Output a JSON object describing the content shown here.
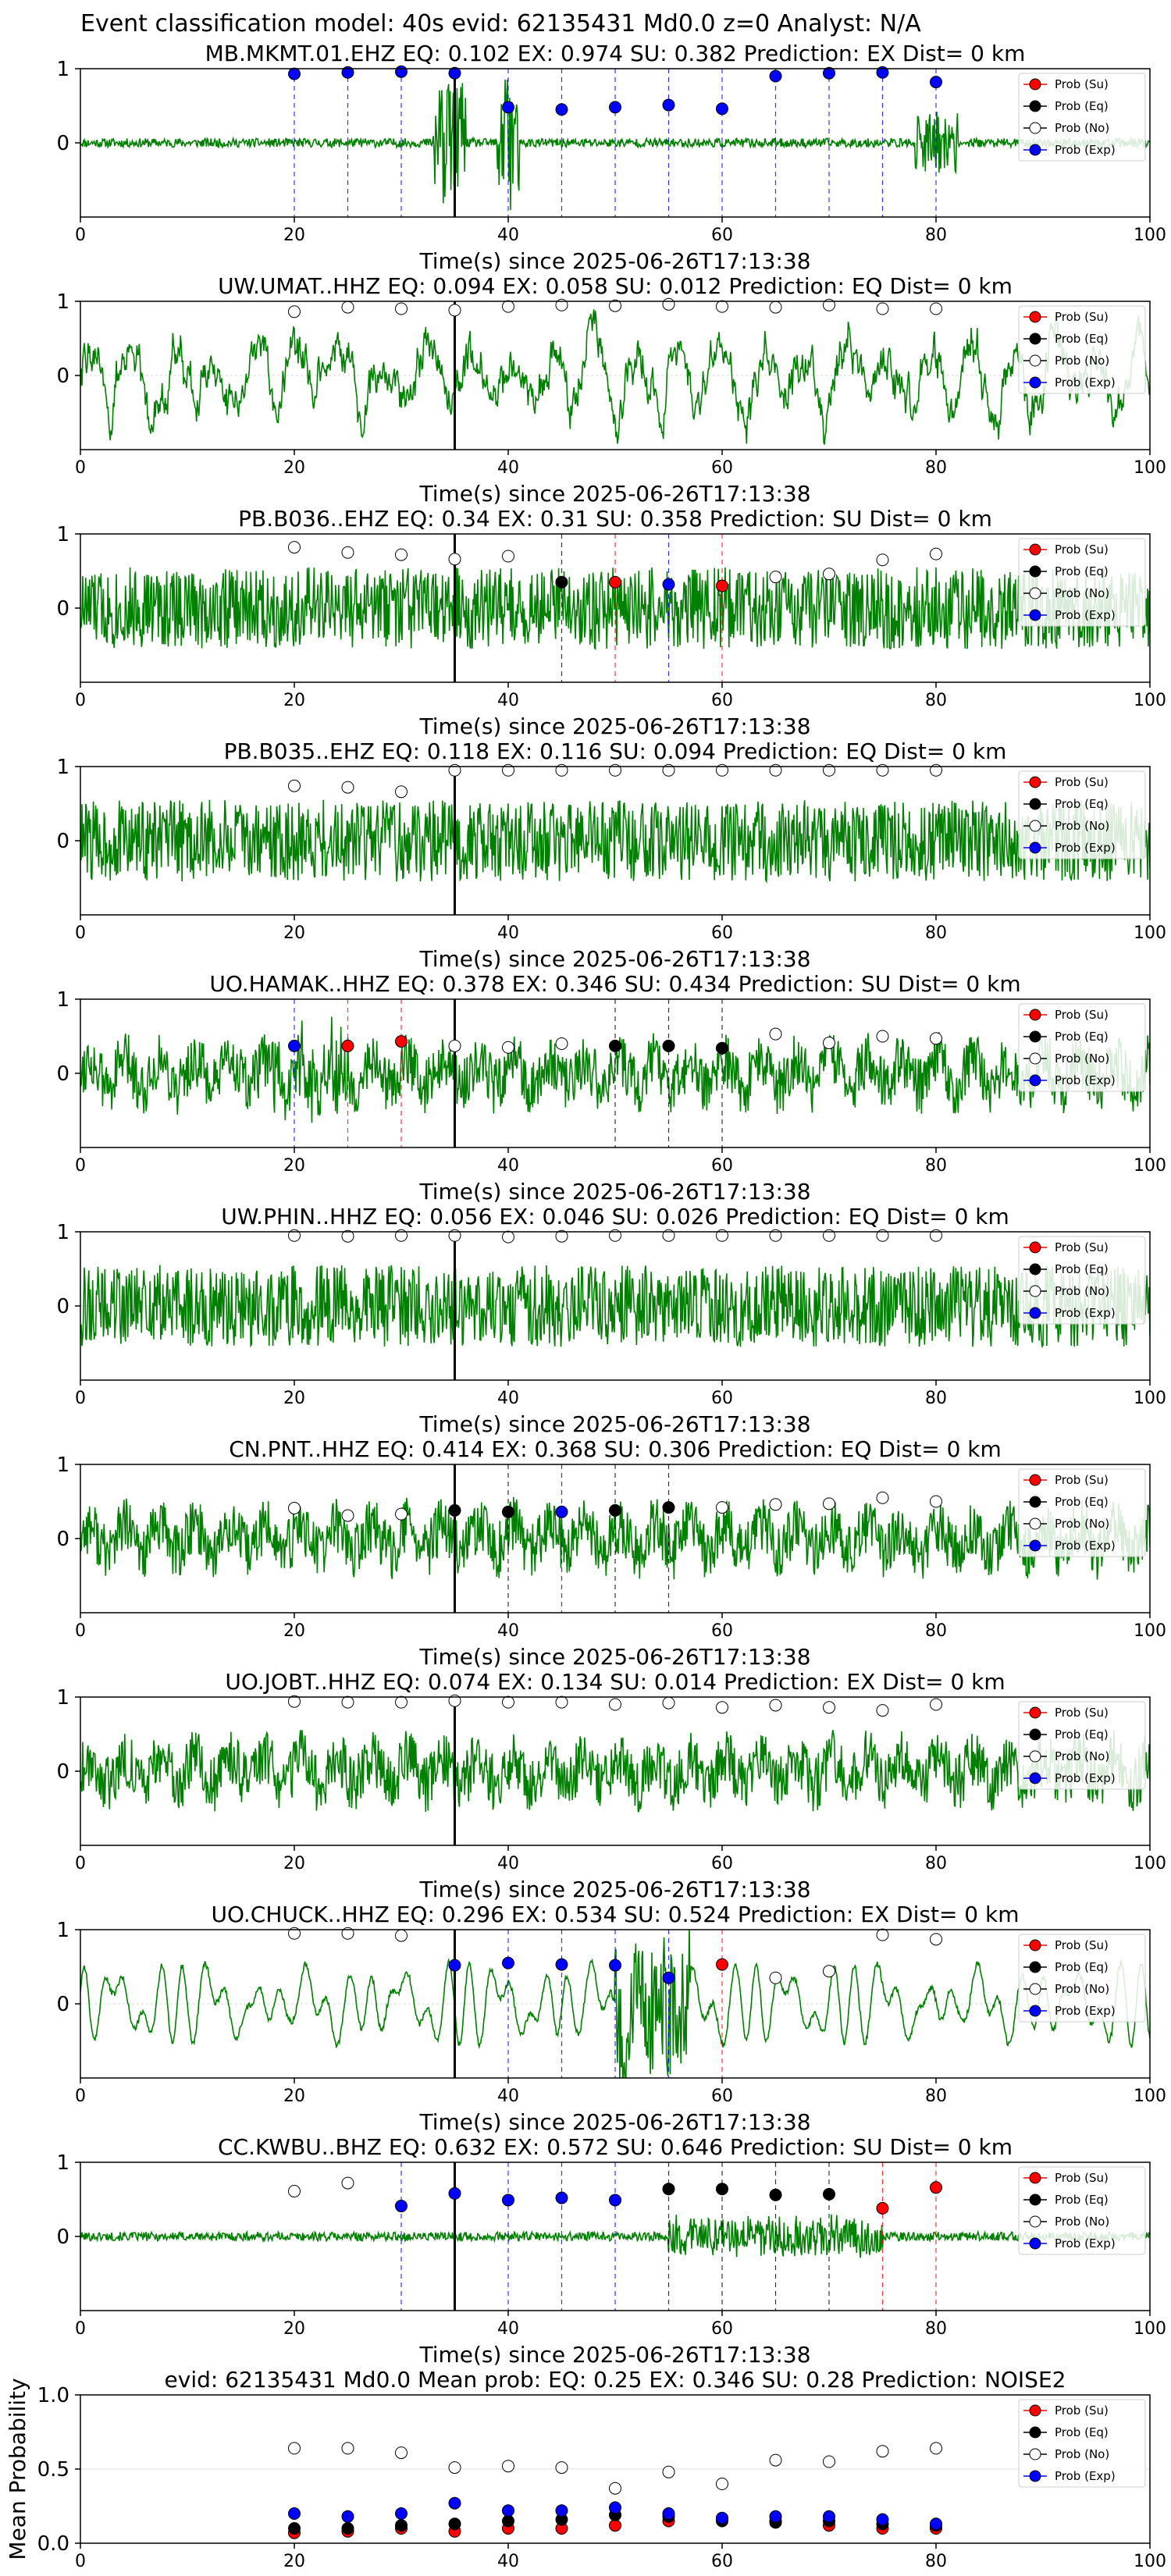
{
  "figure": {
    "suptitle": "Event classification model: 40s evid: 62135431 Md0.0 z=0 Analyst: N/A"
  },
  "legend_labels": [
    "Prob (Su)",
    "Prob (Eq)",
    "Prob (No)",
    "Prob (Exp)"
  ],
  "colors": {
    "su": "#ff0000",
    "eq": "#000000",
    "no": "#ffffff",
    "exp": "#0000ff",
    "trace": "#008000"
  },
  "chart_data": [
    {
      "type": "line",
      "title": "MB.MKMT.01.EHZ    EQ: 0.102   EX: 0.974   SU: 0.382    Prediction: EX     Dist= 0 km",
      "xlabel": "Time(s) since 2025-06-26T17:13:38",
      "ylabel": "",
      "xlim": [
        0,
        100
      ],
      "ylim": [
        -1,
        1
      ],
      "xticks": [
        0,
        20,
        40,
        60,
        80,
        100
      ],
      "yticks": [
        0,
        1
      ],
      "pick_time": 35,
      "trace": {
        "seed": 11,
        "style": "quiet",
        "bursts": [
          [
            33,
            36,
            0.8
          ],
          [
            39,
            41,
            0.9
          ],
          [
            78,
            82,
            0.4
          ]
        ]
      },
      "windows": [
        20,
        25,
        30,
        35,
        40,
        45,
        50,
        55,
        60,
        65,
        70,
        75,
        80
      ],
      "points": [
        [
          "exp",
          0.93
        ],
        [
          "exp",
          0.95
        ],
        [
          "exp",
          0.96
        ],
        [
          "exp",
          0.94
        ],
        [
          "exp",
          0.48
        ],
        [
          "exp",
          0.45
        ],
        [
          "exp",
          0.48
        ],
        [
          "exp",
          0.51
        ],
        [
          "exp",
          0.46
        ],
        [
          "exp",
          0.9
        ],
        [
          "exp",
          0.94
        ],
        [
          "exp",
          0.95
        ],
        [
          "exp",
          0.82
        ]
      ]
    },
    {
      "type": "line",
      "title": "UW.UMAT..HHZ   EQ: 0.094   EX: 0.058   SU: 0.012    Prediction: EQ     Dist= 0 km",
      "xlabel": "Time(s) since 2025-06-26T17:13:38",
      "ylabel": "",
      "xlim": [
        0,
        100
      ],
      "ylim": [
        -1,
        1
      ],
      "xticks": [
        0,
        20,
        40,
        60,
        80,
        100
      ],
      "yticks": [
        0,
        1
      ],
      "pick_time": 35,
      "trace": {
        "seed": 22,
        "style": "wavy",
        "bursts": []
      },
      "windows": [
        20,
        25,
        30,
        35,
        40,
        45,
        50,
        55,
        60,
        65,
        70,
        75,
        80
      ],
      "points": [
        [
          "no",
          0.86
        ],
        [
          "no",
          0.92
        ],
        [
          "no",
          0.9
        ],
        [
          "no",
          0.88
        ],
        [
          "no",
          0.93
        ],
        [
          "no",
          0.95
        ],
        [
          "no",
          0.94
        ],
        [
          "no",
          0.96
        ],
        [
          "no",
          0.93
        ],
        [
          "no",
          0.92
        ],
        [
          "no",
          0.95
        ],
        [
          "no",
          0.9
        ],
        [
          "no",
          0.9
        ]
      ]
    },
    {
      "type": "line",
      "title": "PB.B036..EHZ   EQ: 0.34   EX: 0.31   SU: 0.358    Prediction: SU     Dist= 0 km",
      "xlabel": "Time(s) since 2025-06-26T17:13:38",
      "ylabel": "",
      "xlim": [
        0,
        100
      ],
      "ylim": [
        -1,
        1
      ],
      "xticks": [
        0,
        20,
        40,
        60,
        80,
        100
      ],
      "yticks": [
        0,
        1
      ],
      "pick_time": 35,
      "trace": {
        "seed": 33,
        "style": "dense",
        "bursts": []
      },
      "windows": [
        20,
        25,
        30,
        35,
        40,
        45,
        50,
        55,
        60,
        65,
        70,
        75,
        80
      ],
      "points": [
        [
          "no",
          0.82
        ],
        [
          "no",
          0.75
        ],
        [
          "no",
          0.72
        ],
        [
          "no",
          0.66
        ],
        [
          "no",
          0.7
        ],
        [
          "eq",
          0.35
        ],
        [
          "su",
          0.35
        ],
        [
          "exp",
          0.32
        ],
        [
          "su",
          0.3
        ],
        [
          "no",
          0.42
        ],
        [
          "no",
          0.46
        ],
        [
          "no",
          0.65
        ],
        [
          "no",
          0.73
        ]
      ]
    },
    {
      "type": "line",
      "title": "PB.B035..EHZ   EQ: 0.118   EX: 0.116   SU: 0.094    Prediction: EQ     Dist= 0 km",
      "xlabel": "Time(s) since 2025-06-26T17:13:38",
      "ylabel": "",
      "xlim": [
        0,
        100
      ],
      "ylim": [
        -1,
        1
      ],
      "xticks": [
        0,
        20,
        40,
        60,
        80,
        100
      ],
      "yticks": [
        0,
        1
      ],
      "pick_time": 35,
      "trace": {
        "seed": 44,
        "style": "dense",
        "bursts": []
      },
      "windows": [
        20,
        25,
        30,
        35,
        40,
        45,
        50,
        55,
        60,
        65,
        70,
        75,
        80
      ],
      "points": [
        [
          "no",
          0.74
        ],
        [
          "no",
          0.72
        ],
        [
          "no",
          0.66
        ],
        [
          "no",
          0.95
        ],
        [
          "no",
          0.95
        ],
        [
          "no",
          0.95
        ],
        [
          "no",
          0.95
        ],
        [
          "no",
          0.95
        ],
        [
          "no",
          0.95
        ],
        [
          "no",
          0.95
        ],
        [
          "no",
          0.95
        ],
        [
          "no",
          0.95
        ],
        [
          "no",
          0.95
        ]
      ]
    },
    {
      "type": "line",
      "title": "UO.HAMAK..HHZ   EQ: 0.378   EX: 0.346   SU: 0.434    Prediction: SU     Dist= 0 km",
      "xlabel": "Time(s) since 2025-06-26T17:13:38",
      "ylabel": "",
      "xlim": [
        0,
        100
      ],
      "ylim": [
        -1,
        1
      ],
      "xticks": [
        0,
        20,
        40,
        60,
        80,
        100
      ],
      "yticks": [
        0,
        1
      ],
      "pick_time": 35,
      "trace": {
        "seed": 55,
        "style": "medium",
        "bursts": [
          [
            18,
            25,
            0.4
          ]
        ]
      },
      "windows": [
        20,
        25,
        30,
        35,
        40,
        45,
        50,
        55,
        60,
        65,
        70,
        75,
        80
      ],
      "points": [
        [
          "exp",
          0.37
        ],
        [
          "su",
          0.37
        ],
        [
          "su",
          0.43
        ],
        [
          "no",
          0.37
        ],
        [
          "no",
          0.35
        ],
        [
          "no",
          0.4
        ],
        [
          "eq",
          0.37
        ],
        [
          "eq",
          0.37
        ],
        [
          "eq",
          0.34
        ],
        [
          "no",
          0.53
        ],
        [
          "no",
          0.41
        ],
        [
          "no",
          0.5
        ],
        [
          "no",
          0.47
        ]
      ]
    },
    {
      "type": "line",
      "title": "UW.PHIN..HHZ   EQ: 0.056   EX: 0.046   SU: 0.026    Prediction: EQ     Dist= 0 km",
      "xlabel": "Time(s) since 2025-06-26T17:13:38",
      "ylabel": "",
      "xlim": [
        0,
        100
      ],
      "ylim": [
        -1,
        1
      ],
      "xticks": [
        0,
        20,
        40,
        60,
        80,
        100
      ],
      "yticks": [
        0,
        1
      ],
      "pick_time": 35,
      "trace": {
        "seed": 66,
        "style": "dense",
        "bursts": []
      },
      "windows": [
        20,
        25,
        30,
        35,
        40,
        45,
        50,
        55,
        60,
        65,
        70,
        75,
        80
      ],
      "points": [
        [
          "no",
          0.95
        ],
        [
          "no",
          0.94
        ],
        [
          "no",
          0.95
        ],
        [
          "no",
          0.95
        ],
        [
          "no",
          0.93
        ],
        [
          "no",
          0.94
        ],
        [
          "no",
          0.95
        ],
        [
          "no",
          0.95
        ],
        [
          "no",
          0.95
        ],
        [
          "no",
          0.95
        ],
        [
          "no",
          0.95
        ],
        [
          "no",
          0.95
        ],
        [
          "no",
          0.95
        ]
      ]
    },
    {
      "type": "line",
      "title": "CN.PNT..HHZ   EQ: 0.414   EX: 0.368   SU: 0.306    Prediction: EQ     Dist= 0 km",
      "xlabel": "Time(s) since 2025-06-26T17:13:38",
      "ylabel": "",
      "xlim": [
        0,
        100
      ],
      "ylim": [
        -1,
        1
      ],
      "xticks": [
        0,
        20,
        40,
        60,
        80,
        100
      ],
      "yticks": [
        0,
        1
      ],
      "pick_time": 35,
      "trace": {
        "seed": 77,
        "style": "medium",
        "bursts": []
      },
      "windows": [
        20,
        25,
        30,
        35,
        40,
        45,
        50,
        55,
        60,
        65,
        70,
        75,
        80
      ],
      "points": [
        [
          "no",
          0.41
        ],
        [
          "no",
          0.31
        ],
        [
          "no",
          0.33
        ],
        [
          "eq",
          0.38
        ],
        [
          "eq",
          0.36
        ],
        [
          "exp",
          0.36
        ],
        [
          "eq",
          0.38
        ],
        [
          "eq",
          0.42
        ],
        [
          "no",
          0.42
        ],
        [
          "no",
          0.46
        ],
        [
          "no",
          0.47
        ],
        [
          "no",
          0.55
        ],
        [
          "no",
          0.5
        ]
      ]
    },
    {
      "type": "line",
      "title": "UO.JOBT..HHZ   EQ: 0.074   EX: 0.134   SU: 0.014    Prediction: EX     Dist= 0 km",
      "xlabel": "Time(s) since 2025-06-26T17:13:38",
      "ylabel": "",
      "xlim": [
        0,
        100
      ],
      "ylim": [
        -1,
        1
      ],
      "xticks": [
        0,
        20,
        40,
        60,
        80,
        100
      ],
      "yticks": [
        0,
        1
      ],
      "pick_time": 35,
      "trace": {
        "seed": 88,
        "style": "medium",
        "bursts": []
      },
      "windows": [
        20,
        25,
        30,
        35,
        40,
        45,
        50,
        55,
        60,
        65,
        70,
        75,
        80
      ],
      "points": [
        [
          "no",
          0.94
        ],
        [
          "no",
          0.93
        ],
        [
          "no",
          0.93
        ],
        [
          "no",
          0.95
        ],
        [
          "no",
          0.93
        ],
        [
          "no",
          0.93
        ],
        [
          "no",
          0.9
        ],
        [
          "no",
          0.92
        ],
        [
          "no",
          0.86
        ],
        [
          "no",
          0.89
        ],
        [
          "no",
          0.86
        ],
        [
          "no",
          0.82
        ],
        [
          "no",
          0.9
        ]
      ]
    },
    {
      "type": "line",
      "title": "UO.CHUCK..HHZ   EQ: 0.296   EX: 0.534   SU: 0.524    Prediction: EX     Dist= 0 km",
      "xlabel": "Time(s) since 2025-06-26T17:13:38",
      "ylabel": "",
      "xlim": [
        0,
        100
      ],
      "ylim": [
        -1,
        1
      ],
      "xticks": [
        0,
        20,
        40,
        60,
        80,
        100
      ],
      "yticks": [
        0,
        1
      ],
      "pick_time": 35,
      "trace": {
        "seed": 99,
        "style": "smooth",
        "bursts": [
          [
            50,
            57,
            0.9
          ]
        ]
      },
      "windows": [
        20,
        25,
        30,
        35,
        40,
        45,
        50,
        55,
        60,
        65,
        70,
        75,
        80
      ],
      "points": [
        [
          "no",
          0.95
        ],
        [
          "no",
          0.95
        ],
        [
          "no",
          0.92
        ],
        [
          "exp",
          0.52
        ],
        [
          "exp",
          0.55
        ],
        [
          "exp",
          0.53
        ],
        [
          "exp",
          0.52
        ],
        [
          "exp",
          0.35
        ],
        [
          "su",
          0.53
        ],
        [
          "no",
          0.35
        ],
        [
          "no",
          0.44
        ],
        [
          "no",
          0.93
        ],
        [
          "no",
          0.87
        ]
      ]
    },
    {
      "type": "line",
      "title": "CC.KWBU..BHZ   EQ: 0.632   EX: 0.572   SU: 0.646    Prediction: SU     Dist= 0 km",
      "xlabel": "Time(s) since 2025-06-26T17:13:38",
      "ylabel": "",
      "xlim": [
        0,
        100
      ],
      "ylim": [
        -1,
        1
      ],
      "xticks": [
        0,
        20,
        40,
        60,
        80,
        100
      ],
      "yticks": [
        0,
        1
      ],
      "pick_time": 35,
      "trace": {
        "seed": 101,
        "style": "quiet",
        "bursts": [
          [
            55,
            75,
            0.25
          ]
        ]
      },
      "windows": [
        20,
        25,
        30,
        35,
        40,
        45,
        50,
        55,
        60,
        65,
        70,
        75,
        80
      ],
      "points": [
        [
          "no",
          0.61
        ],
        [
          "no",
          0.72
        ],
        [
          "exp",
          0.41
        ],
        [
          "exp",
          0.58
        ],
        [
          "exp",
          0.49
        ],
        [
          "exp",
          0.52
        ],
        [
          "exp",
          0.49
        ],
        [
          "eq",
          0.64
        ],
        [
          "eq",
          0.64
        ],
        [
          "eq",
          0.56
        ],
        [
          "eq",
          0.57
        ],
        [
          "su",
          0.38
        ],
        [
          "su",
          0.66
        ]
      ]
    },
    {
      "type": "scatter",
      "title": "evid: 62135431   Md0.0    Mean prob:   EQ: 0.25   EX: 0.346   SU: 0.28    Prediction: NOISE2",
      "xlabel": "",
      "ylabel": "Mean Probability",
      "xlim": [
        0,
        100
      ],
      "ylim": [
        0,
        1
      ],
      "xticks": [
        0,
        20,
        40,
        60,
        80,
        100
      ],
      "yticks": [
        0.0,
        0.5,
        1.0
      ],
      "x": [
        20,
        25,
        30,
        35,
        40,
        45,
        50,
        55,
        60,
        65,
        70,
        75,
        80
      ],
      "series": [
        {
          "name": "Prob (Su)",
          "key": "su",
          "values": [
            0.07,
            0.08,
            0.1,
            0.08,
            0.1,
            0.1,
            0.12,
            0.15,
            0.16,
            0.15,
            0.12,
            0.1,
            0.1
          ]
        },
        {
          "name": "Prob (Eq)",
          "key": "eq",
          "values": [
            0.1,
            0.1,
            0.12,
            0.13,
            0.15,
            0.16,
            0.19,
            0.18,
            0.15,
            0.14,
            0.15,
            0.13,
            0.12
          ]
        },
        {
          "name": "Prob (No)",
          "key": "no",
          "values": [
            0.64,
            0.64,
            0.61,
            0.51,
            0.52,
            0.51,
            0.37,
            0.48,
            0.4,
            0.56,
            0.55,
            0.62,
            0.64
          ]
        },
        {
          "name": "Prob (Exp)",
          "key": "exp",
          "values": [
            0.2,
            0.18,
            0.2,
            0.27,
            0.22,
            0.22,
            0.24,
            0.2,
            0.17,
            0.18,
            0.18,
            0.16,
            0.13
          ]
        }
      ]
    }
  ]
}
